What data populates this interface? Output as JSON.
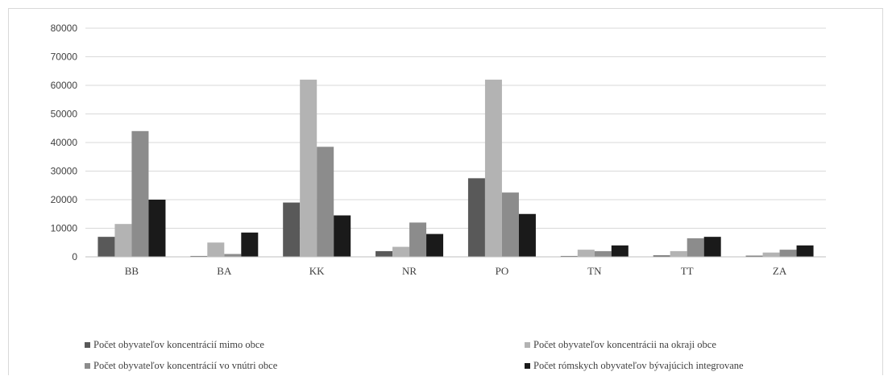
{
  "chart_data": {
    "type": "bar",
    "categories": [
      "BB",
      "BA",
      "KK",
      "NR",
      "PO",
      "TN",
      "TT",
      "ZA"
    ],
    "series": [
      {
        "name": "Počet obyvateľov koncentrácií mimo obce",
        "color": "#595959",
        "values": [
          7000,
          300,
          19000,
          2000,
          27500,
          300,
          500,
          400
        ]
      },
      {
        "name": "Počet obyvateľov koncentrácii na okraji obce",
        "color": "#b3b3b3",
        "values": [
          11500,
          5000,
          62000,
          3500,
          62000,
          2500,
          2000,
          1500
        ]
      },
      {
        "name": "Počet obyvateľov koncentrácií vo vnútri obce",
        "color": "#8c8c8c",
        "values": [
          44000,
          1000,
          38500,
          12000,
          22500,
          2000,
          6500,
          2500
        ]
      },
      {
        "name": "Počet rómskych obyvateľov bývajúcich integrovane",
        "color": "#1a1a1a",
        "values": [
          20000,
          8500,
          14500,
          8000,
          15000,
          4000,
          7000,
          4000
        ]
      }
    ],
    "ylim": [
      0,
      80000
    ],
    "yticks": [
      "0",
      "10000",
      "20000",
      "30000",
      "40000",
      "50000",
      "60000",
      "70000",
      "80000"
    ],
    "grid": true,
    "legend_position": "bottom"
  }
}
